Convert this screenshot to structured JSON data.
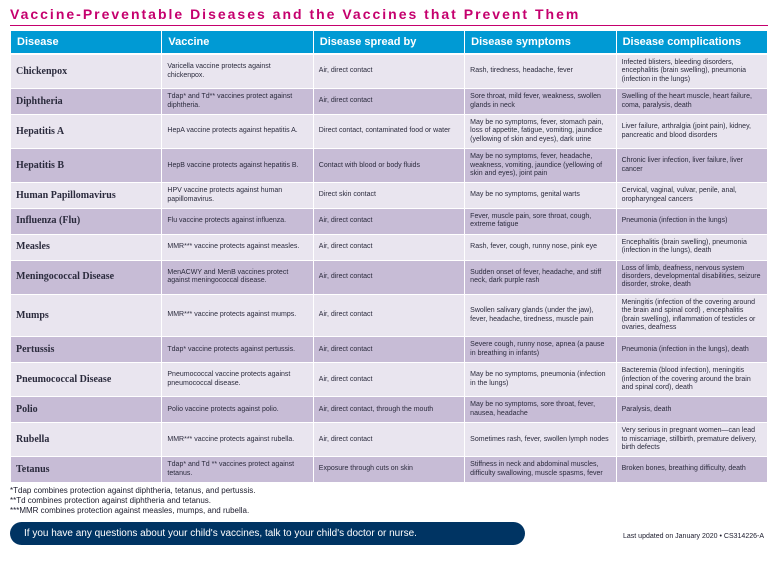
{
  "title": "Vaccine-Preventable Diseases and the Vaccines that Prevent Them",
  "columns": [
    "Disease",
    "Vaccine",
    "Disease spread by",
    "Disease symptoms",
    "Disease complications"
  ],
  "rows": [
    {
      "shade": "light",
      "cells": [
        "Chickenpox",
        "Varicella vaccine protects against chickenpox.",
        "Air, direct contact",
        "Rash, tiredness, headache, fever",
        "Infected blisters, bleeding disorders, encephalitis (brain swelling), pneumonia (infection in the lungs)"
      ]
    },
    {
      "shade": "dark",
      "cells": [
        "Diphtheria",
        "Tdap* and Td** vaccines protect against diphtheria.",
        "Air, direct contact",
        "Sore throat, mild fever, weakness, swollen glands in neck",
        "Swelling of the heart muscle, heart failure, coma, paralysis, death"
      ]
    },
    {
      "shade": "light",
      "cells": [
        "Hepatitis A",
        "HepA vaccine protects against hepatitis A.",
        "Direct contact, contaminated food or water",
        "May be no symptoms, fever, stomach pain, loss of appetite, fatigue, vomiting, jaundice (yellowing of skin and eyes), dark urine",
        "Liver failure, arthralgia (joint pain), kidney, pancreatic and blood disorders"
      ]
    },
    {
      "shade": "dark",
      "cells": [
        "Hepatitis B",
        "HepB vaccine protects against hepatitis B.",
        "Contact with blood or body fluids",
        "May be no symptoms, fever, headache, weakness, vomiting, jaundice (yellowing of skin and eyes), joint pain",
        "Chronic liver infection, liver failure, liver cancer"
      ]
    },
    {
      "shade": "light",
      "cells": [
        "Human Papillomavirus",
        "HPV vaccine protects against human papillomavirus.",
        "Direct skin contact",
        "May be no symptoms, genital warts",
        "Cervical, vaginal, vulvar, penile, anal, oropharyngeal cancers"
      ]
    },
    {
      "shade": "dark",
      "cells": [
        "Influenza (Flu)",
        "Flu vaccine protects against influenza.",
        "Air, direct contact",
        "Fever, muscle pain, sore throat, cough, extreme fatigue",
        "Pneumonia (infection in the lungs)"
      ]
    },
    {
      "shade": "light",
      "cells": [
        "Measles",
        "MMR*** vaccine protects against measles.",
        "Air, direct contact",
        "Rash, fever, cough, runny nose, pink eye",
        "Encephalitis (brain swelling), pneumonia (infection in the lungs), death"
      ]
    },
    {
      "shade": "dark",
      "cells": [
        "Meningococcal Disease",
        "MenACWY and MenB vaccines protect against meningococcal disease.",
        "Air, direct contact",
        "Sudden onset of fever, headache, and stiff neck, dark purple rash",
        "Loss of limb, deafness, nervous system disorders, developmental disabilities, seizure disorder, stroke, death"
      ]
    },
    {
      "shade": "light",
      "cells": [
        "Mumps",
        "MMR*** vaccine protects against mumps.",
        "Air, direct contact",
        "Swollen salivary glands (under the jaw), fever, headache, tiredness, muscle pain",
        "Meningitis (infection of the covering around the brain and spinal cord) , encephalitis (brain swelling), inflammation of testicles or ovaries, deafness"
      ]
    },
    {
      "shade": "dark",
      "cells": [
        "Pertussis",
        "Tdap* vaccine protects against pertussis.",
        "Air, direct contact",
        "Severe cough, runny nose, apnea (a pause in breathing in infants)",
        "Pneumonia (infection in the lungs), death"
      ]
    },
    {
      "shade": "light",
      "cells": [
        "Pneumococcal Disease",
        "Pneumococcal vaccine protects against pneumococcal disease.",
        "Air, direct contact",
        "May be no symptoms, pneumonia (infection in the lungs)",
        "Bacteremia (blood infection), meningitis (infection of the covering around the brain and spinal cord), death"
      ]
    },
    {
      "shade": "dark",
      "cells": [
        "Polio",
        "Polio vaccine protects against polio.",
        "Air, direct contact, through the mouth",
        "May be no symptoms, sore throat, fever, nausea, headache",
        "Paralysis, death"
      ]
    },
    {
      "shade": "light",
      "cells": [
        "Rubella",
        "MMR*** vaccine protects against rubella.",
        "Air, direct contact",
        "Sometimes rash, fever, swollen lymph nodes",
        "Very serious in pregnant women—can lead to miscarriage, stillbirth, premature delivery, birth defects"
      ]
    },
    {
      "shade": "dark",
      "cells": [
        "Tetanus",
        "Tdap* and Td ** vaccines protect against tetanus.",
        "Exposure through cuts on skin",
        "Stiffness in neck and abdominal muscles, difficulty swallowing, muscle spasms, fever",
        "Broken bones, breathing difficulty, death"
      ]
    }
  ],
  "footnotes": [
    "*Tdap combines protection against diphtheria, tetanus, and pertussis.",
    "**Td combines protection against diphtheria and tetanus.",
    "***MMR combines protection against measles, mumps, and rubella."
  ],
  "bottombar": "If you have any questions about your child's vaccines, talk to your child's doctor or nurse.",
  "updated": "Last updated on January 2020 • CS314226-A",
  "colors": {
    "brand_pink": "#c5006e",
    "header_blue": "#009ad4",
    "row_light": "#e9e5ef",
    "row_dark": "#c7bcd6",
    "bottombar_bg": "#003463"
  }
}
